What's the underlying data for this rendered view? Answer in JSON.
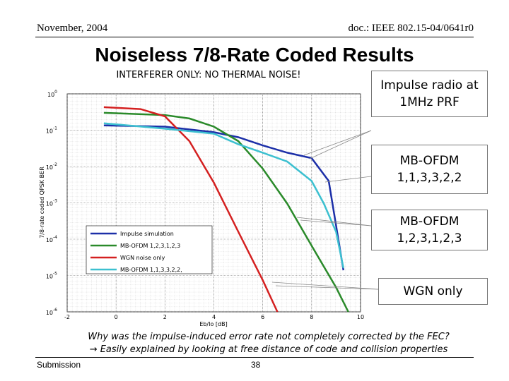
{
  "header": {
    "date": "November, 2004",
    "doc": "doc.: IEEE 802.15-04/0641r0"
  },
  "title": "Noiseless 7/8-Rate Coded Results",
  "chart_data": {
    "type": "line",
    "subtitle": "INTERFERER ONLY: NO THERMAL NOISE!",
    "xlabel": "Eb/Io [dB]",
    "ylabel": "7/8-rate coded QPSK BER",
    "log_y": true,
    "grid": true,
    "xlim": [
      -2,
      10
    ],
    "xticks": [
      -2,
      0,
      2,
      4,
      6,
      8,
      10
    ],
    "ylim": [
      1e-06,
      1
    ],
    "yticks": [
      {
        "value": 1,
        "label": "10^0"
      },
      {
        "value": 0.1,
        "label": "10^-1"
      },
      {
        "value": 0.01,
        "label": "10^-2"
      },
      {
        "value": 0.001,
        "label": "10^-3"
      },
      {
        "value": 0.0001,
        "label": "10^-4"
      },
      {
        "value": 1e-05,
        "label": "10^-5"
      },
      {
        "value": 1e-06,
        "label": "10^-6"
      }
    ],
    "series": [
      {
        "name": "Impulse simulation",
        "color": "#1c2fa8",
        "x": [
          -0.5,
          2,
          4,
          5,
          6,
          7,
          8,
          8.7,
          9.3
        ],
        "values": [
          0.135,
          0.125,
          0.088,
          0.064,
          0.038,
          0.024,
          0.017,
          0.004,
          1.4e-05
        ]
      },
      {
        "name": "MB-OFDM 1,2,3,1,2,3",
        "color": "#2a8a2a",
        "x": [
          -0.5,
          2,
          3,
          4,
          5,
          6,
          7,
          8,
          9,
          9.5
        ],
        "values": [
          0.3,
          0.26,
          0.21,
          0.125,
          0.05,
          0.0087,
          0.00095,
          6.6e-05,
          4.7e-06,
          1e-06
        ]
      },
      {
        "name": "WGN noise only",
        "color": "#d42020",
        "x": [
          -0.5,
          1,
          2,
          3,
          4,
          5,
          6,
          6.6
        ],
        "values": [
          0.43,
          0.38,
          0.24,
          0.05,
          0.0036,
          0.00016,
          7.4e-06,
          1e-06
        ]
      },
      {
        "name": "MB-OFDM 1,1,3,3,2,2,",
        "color": "#3cc0d0",
        "x": [
          -0.5,
          2,
          4,
          5,
          6,
          7,
          8,
          8.5,
          9,
          9.3
        ],
        "values": [
          0.155,
          0.11,
          0.08,
          0.041,
          0.024,
          0.0137,
          0.004,
          0.00095,
          0.00016,
          1.6e-05
        ]
      }
    ],
    "annotations": [
      "Impulse radio at 1MHz PRF",
      "MB-OFDM 1,1,3,3,2,2",
      "MB-OFDM 1,2,3,1,2,3",
      "WGN only"
    ]
  },
  "footer": {
    "question": "Why was the impulse-induced error rate not completely corrected by the FEC?",
    "answer": "→ Easily explained by looking at free distance of code and collision properties",
    "left": "Submission",
    "page": "38"
  }
}
